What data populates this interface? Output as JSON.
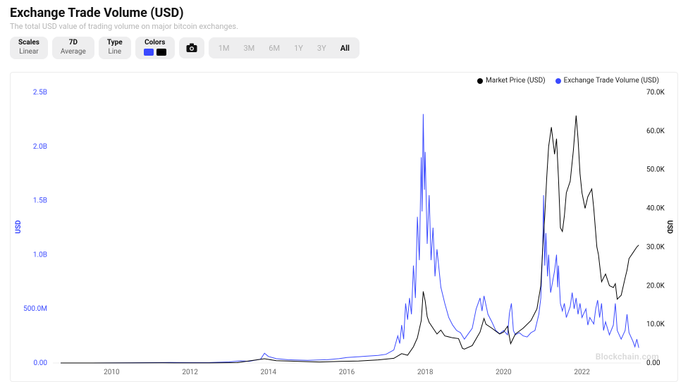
{
  "header": {
    "title": "Exchange Trade Volume (USD)",
    "subtitle": "The total USD value of trading volume on major bitcoin exchanges."
  },
  "toolbar": {
    "scales": {
      "label": "Scales",
      "value": "Linear"
    },
    "window": {
      "label": "7D",
      "value": "Average"
    },
    "type": {
      "label": "Type",
      "value": "Line"
    },
    "colors": {
      "label": "Colors",
      "swatches": [
        "#3a49ff",
        "#000000"
      ]
    },
    "camera_icon_name": "camera-icon",
    "ranges": {
      "options": [
        "1M",
        "3M",
        "6M",
        "1Y",
        "3Y",
        "All"
      ],
      "selected": "All"
    }
  },
  "legend": {
    "series": [
      {
        "label": "Market Price (USD)",
        "color": "#000000"
      },
      {
        "label": "Exchange Trade Volume (USD)",
        "color": "#3a49ff"
      }
    ]
  },
  "chart": {
    "type": "line",
    "background_color": "#ffffff",
    "grid_color": "#ececec",
    "x": {
      "min": 2008.5,
      "max": 2023.5,
      "ticks": [
        2010,
        2012,
        2014,
        2016,
        2018,
        2020,
        2022
      ],
      "tick_labels": [
        "2010",
        "2012",
        "2014",
        "2016",
        "2018",
        "2020",
        "2022"
      ]
    },
    "y_left": {
      "label": "USD",
      "color": "#3a49ff",
      "min": 0,
      "max": 2.5,
      "unit": "B",
      "ticks": [
        0,
        0.5,
        1.0,
        1.5,
        2.0,
        2.5
      ],
      "tick_labels": [
        "0.00",
        "500.0M",
        "1.0B",
        "1.5B",
        "2.0B",
        "2.5B"
      ]
    },
    "y_right": {
      "label": "USD",
      "color": "#000000",
      "min": 0,
      "max": 70,
      "unit": "K",
      "ticks": [
        0,
        10,
        20,
        30,
        40,
        50,
        60,
        70
      ],
      "tick_labels": [
        "0.00",
        "10.0K",
        "20.0K",
        "30.0K",
        "40.0K",
        "50.0K",
        "60.0K",
        "70.0K"
      ]
    },
    "series_volume": {
      "axis": "left",
      "color": "#3a49ff",
      "line_width": 1,
      "points": [
        [
          2008.7,
          0.0
        ],
        [
          2009.5,
          0.0
        ],
        [
          2010.5,
          0.001
        ],
        [
          2011.0,
          0.003
        ],
        [
          2011.5,
          0.005
        ],
        [
          2012.0,
          0.003
        ],
        [
          2012.5,
          0.004
        ],
        [
          2013.0,
          0.01
        ],
        [
          2013.3,
          0.02
        ],
        [
          2013.5,
          0.015
        ],
        [
          2013.8,
          0.035
        ],
        [
          2013.9,
          0.09
        ],
        [
          2014.0,
          0.06
        ],
        [
          2014.2,
          0.04
        ],
        [
          2014.5,
          0.03
        ],
        [
          2015.0,
          0.025
        ],
        [
          2015.5,
          0.03
        ],
        [
          2015.8,
          0.04
        ],
        [
          2016.0,
          0.05
        ],
        [
          2016.4,
          0.06
        ],
        [
          2016.8,
          0.07
        ],
        [
          2017.0,
          0.08
        ],
        [
          2017.2,
          0.12
        ],
        [
          2017.3,
          0.25
        ],
        [
          2017.35,
          0.18
        ],
        [
          2017.4,
          0.35
        ],
        [
          2017.45,
          0.22
        ],
        [
          2017.5,
          0.55
        ],
        [
          2017.55,
          0.4
        ],
        [
          2017.6,
          0.6
        ],
        [
          2017.65,
          0.45
        ],
        [
          2017.7,
          0.9
        ],
        [
          2017.75,
          0.6
        ],
        [
          2017.8,
          1.35
        ],
        [
          2017.85,
          0.95
        ],
        [
          2017.9,
          1.9
        ],
        [
          2017.92,
          1.4
        ],
        [
          2017.95,
          2.3
        ],
        [
          2017.98,
          1.6
        ],
        [
          2018.0,
          1.95
        ],
        [
          2018.05,
          1.1
        ],
        [
          2018.1,
          1.55
        ],
        [
          2018.15,
          0.95
        ],
        [
          2018.2,
          1.25
        ],
        [
          2018.25,
          0.8
        ],
        [
          2018.3,
          1.05
        ],
        [
          2018.4,
          0.7
        ],
        [
          2018.5,
          0.55
        ],
        [
          2018.6,
          0.42
        ],
        [
          2018.7,
          0.35
        ],
        [
          2018.8,
          0.3
        ],
        [
          2018.9,
          0.28
        ],
        [
          2019.0,
          0.22
        ],
        [
          2019.2,
          0.32
        ],
        [
          2019.3,
          0.5
        ],
        [
          2019.4,
          0.6
        ],
        [
          2019.45,
          0.48
        ],
        [
          2019.5,
          0.62
        ],
        [
          2019.6,
          0.45
        ],
        [
          2019.7,
          0.38
        ],
        [
          2019.8,
          0.3
        ],
        [
          2019.9,
          0.27
        ],
        [
          2020.0,
          0.3
        ],
        [
          2020.1,
          0.26
        ],
        [
          2020.15,
          0.46
        ],
        [
          2020.2,
          0.55
        ],
        [
          2020.25,
          0.3
        ],
        [
          2020.3,
          0.26
        ],
        [
          2020.4,
          0.28
        ],
        [
          2020.5,
          0.25
        ],
        [
          2020.6,
          0.24
        ],
        [
          2020.7,
          0.28
        ],
        [
          2020.8,
          0.3
        ],
        [
          2020.9,
          0.45
        ],
        [
          2020.95,
          0.6
        ],
        [
          2021.0,
          1.1
        ],
        [
          2021.02,
          1.55
        ],
        [
          2021.05,
          0.9
        ],
        [
          2021.08,
          1.2
        ],
        [
          2021.12,
          0.8
        ],
        [
          2021.15,
          1.0
        ],
        [
          2021.2,
          0.65
        ],
        [
          2021.3,
          0.85
        ],
        [
          2021.35,
          1.0
        ],
        [
          2021.38,
          0.7
        ],
        [
          2021.4,
          0.9
        ],
        [
          2021.45,
          0.55
        ],
        [
          2021.5,
          0.48
        ],
        [
          2021.55,
          0.55
        ],
        [
          2021.6,
          0.42
        ],
        [
          2021.7,
          0.52
        ],
        [
          2021.75,
          0.65
        ],
        [
          2021.8,
          0.5
        ],
        [
          2021.85,
          0.6
        ],
        [
          2021.9,
          0.45
        ],
        [
          2021.95,
          0.55
        ],
        [
          2022.0,
          0.42
        ],
        [
          2022.1,
          0.5
        ],
        [
          2022.15,
          0.35
        ],
        [
          2022.2,
          0.42
        ],
        [
          2022.3,
          0.36
        ],
        [
          2022.35,
          0.5
        ],
        [
          2022.4,
          0.58
        ],
        [
          2022.45,
          0.42
        ],
        [
          2022.5,
          0.55
        ],
        [
          2022.55,
          0.3
        ],
        [
          2022.6,
          0.38
        ],
        [
          2022.7,
          0.26
        ],
        [
          2022.8,
          0.35
        ],
        [
          2022.85,
          0.55
        ],
        [
          2022.9,
          0.3
        ],
        [
          2023.0,
          0.22
        ],
        [
          2023.1,
          0.3
        ],
        [
          2023.15,
          0.45
        ],
        [
          2023.2,
          0.28
        ],
        [
          2023.3,
          0.2
        ],
        [
          2023.35,
          0.15
        ],
        [
          2023.4,
          0.22
        ],
        [
          2023.45,
          0.14
        ]
      ]
    },
    "series_price": {
      "axis": "right",
      "color": "#000000",
      "line_width": 1,
      "points": [
        [
          2008.7,
          0.0
        ],
        [
          2010.5,
          0.01
        ],
        [
          2011.3,
          0.03
        ],
        [
          2011.6,
          0.01
        ],
        [
          2012.5,
          0.01
        ],
        [
          2013.2,
          0.1
        ],
        [
          2013.9,
          1.1
        ],
        [
          2014.2,
          0.6
        ],
        [
          2014.8,
          0.4
        ],
        [
          2015.3,
          0.25
        ],
        [
          2015.8,
          0.4
        ],
        [
          2016.3,
          0.5
        ],
        [
          2016.8,
          0.8
        ],
        [
          2017.2,
          1.2
        ],
        [
          2017.4,
          2.4
        ],
        [
          2017.55,
          2.0
        ],
        [
          2017.7,
          4.2
        ],
        [
          2017.8,
          6.5
        ],
        [
          2017.9,
          11.0
        ],
        [
          2017.95,
          18.5
        ],
        [
          2018.0,
          16.0
        ],
        [
          2018.05,
          12.0
        ],
        [
          2018.1,
          10.5
        ],
        [
          2018.2,
          9.0
        ],
        [
          2018.3,
          7.5
        ],
        [
          2018.4,
          8.5
        ],
        [
          2018.5,
          7.0
        ],
        [
          2018.7,
          6.5
        ],
        [
          2018.85,
          6.3
        ],
        [
          2018.95,
          3.8
        ],
        [
          2019.0,
          3.6
        ],
        [
          2019.2,
          4.5
        ],
        [
          2019.4,
          8.0
        ],
        [
          2019.5,
          11.5
        ],
        [
          2019.55,
          10.0
        ],
        [
          2019.7,
          9.0
        ],
        [
          2019.9,
          7.5
        ],
        [
          2020.0,
          8.0
        ],
        [
          2020.1,
          9.5
        ],
        [
          2020.18,
          5.0
        ],
        [
          2020.3,
          7.5
        ],
        [
          2020.5,
          9.0
        ],
        [
          2020.7,
          11.0
        ],
        [
          2020.85,
          14.0
        ],
        [
          2020.95,
          20.0
        ],
        [
          2021.0,
          30.0
        ],
        [
          2021.05,
          38.0
        ],
        [
          2021.1,
          48.0
        ],
        [
          2021.15,
          56.0
        ],
        [
          2021.22,
          61.0
        ],
        [
          2021.3,
          54.0
        ],
        [
          2021.35,
          58.0
        ],
        [
          2021.4,
          48.0
        ],
        [
          2021.45,
          35.0
        ],
        [
          2021.5,
          34.0
        ],
        [
          2021.55,
          38.0
        ],
        [
          2021.6,
          44.0
        ],
        [
          2021.7,
          47.0
        ],
        [
          2021.78,
          55.0
        ],
        [
          2021.85,
          64.0
        ],
        [
          2021.9,
          58.0
        ],
        [
          2021.95,
          49.0
        ],
        [
          2022.0,
          44.0
        ],
        [
          2022.08,
          40.0
        ],
        [
          2022.15,
          43.0
        ],
        [
          2022.25,
          45.0
        ],
        [
          2022.3,
          40.0
        ],
        [
          2022.38,
          30.0
        ],
        [
          2022.42,
          28.0
        ],
        [
          2022.5,
          21.0
        ],
        [
          2022.6,
          23.0
        ],
        [
          2022.7,
          20.0
        ],
        [
          2022.8,
          19.5
        ],
        [
          2022.85,
          20.5
        ],
        [
          2022.9,
          16.5
        ],
        [
          2022.95,
          17.0
        ],
        [
          2023.0,
          17.5
        ],
        [
          2023.1,
          22.0
        ],
        [
          2023.15,
          24.0
        ],
        [
          2023.2,
          27.0
        ],
        [
          2023.3,
          28.5
        ],
        [
          2023.4,
          30.0
        ],
        [
          2023.45,
          30.5
        ]
      ]
    }
  },
  "watermark": "Blockchain.com"
}
